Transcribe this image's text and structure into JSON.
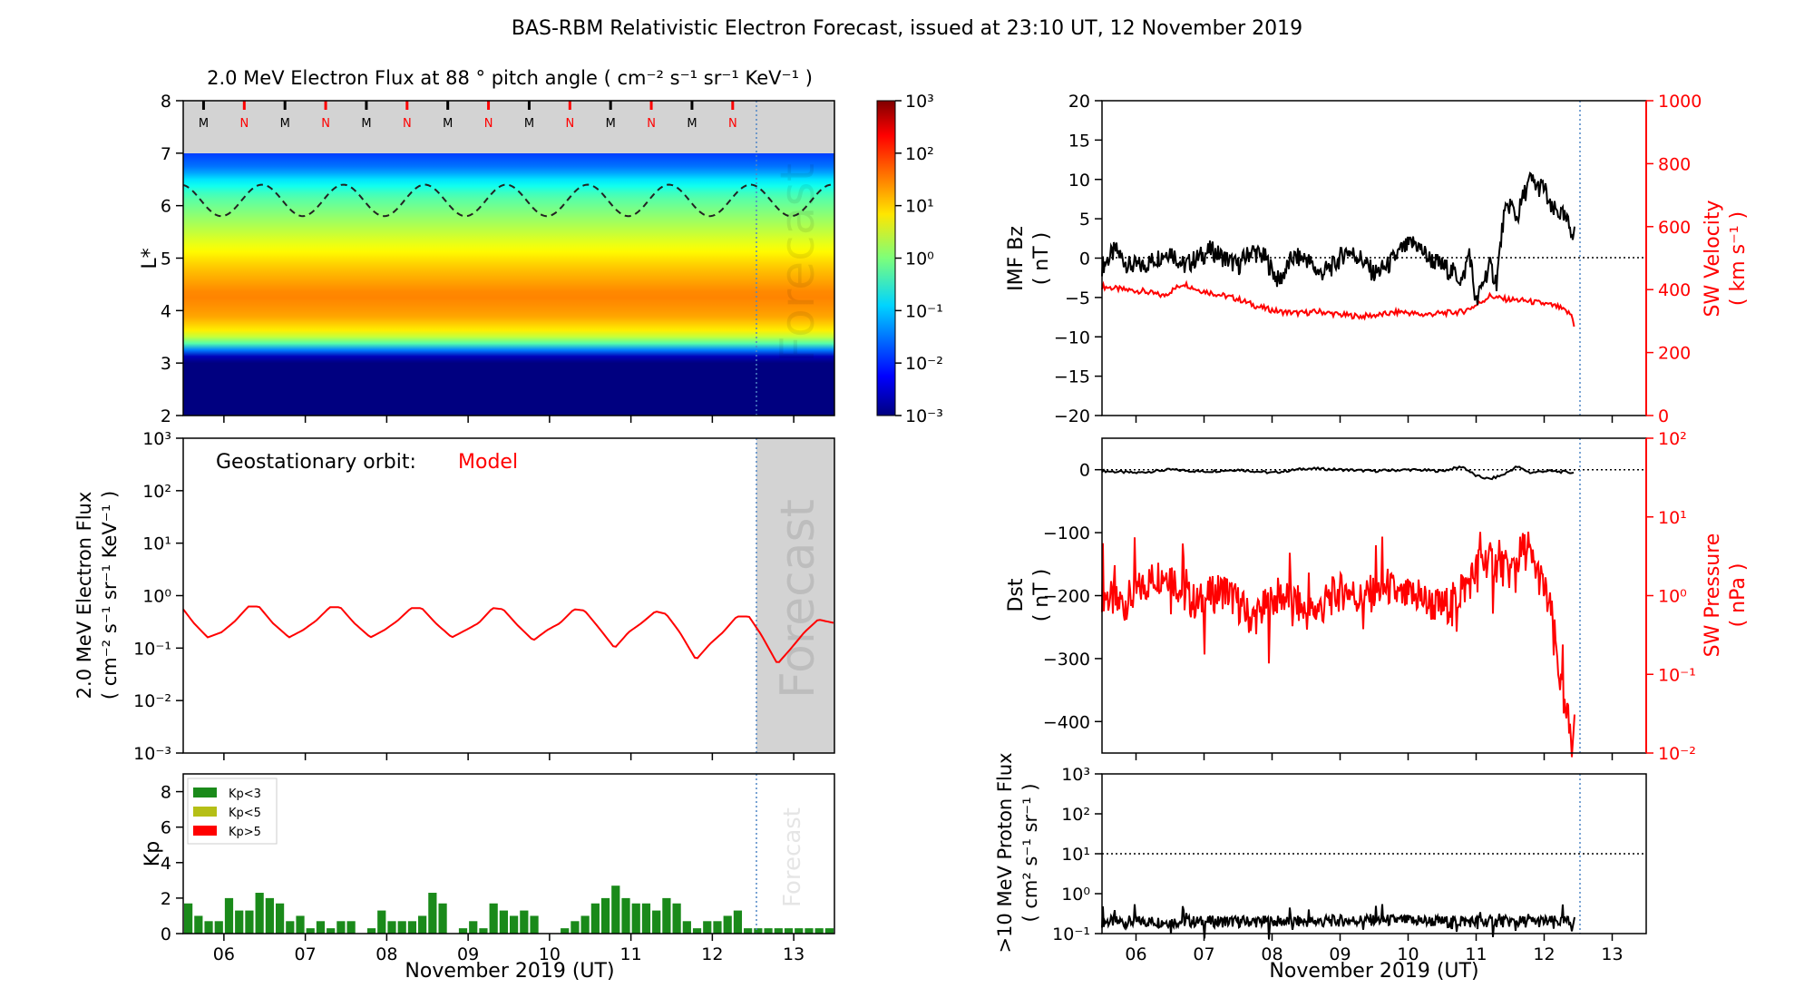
{
  "figure_title": "BAS-RBM Relativistic Electron Forecast, issued at 23:10 UT, 12 November 2019",
  "xaxis": {
    "label": "November 2019 (UT)",
    "ticks": [
      "06",
      "07",
      "08",
      "09",
      "10",
      "11",
      "12",
      "13"
    ]
  },
  "forecast_label": "Forecast",
  "chart_data": [
    {
      "id": "flux_heatmap",
      "type": "heatmap",
      "title": "2.0 MeV Electron Flux at 88 ° pitch angle ( cm⁻² s⁻¹ sr⁻¹ KeV⁻¹ )",
      "ylabel": "L*",
      "x_range_days": [
        5.5,
        13.5
      ],
      "ylim": [
        2,
        8
      ],
      "yticks": [
        "2",
        "3",
        "4",
        "5",
        "6",
        "7",
        "8"
      ],
      "colorbar": {
        "scale": "log",
        "range": [
          -3,
          3
        ],
        "tick_labels": [
          "10⁻³",
          "10⁻²",
          "10⁻¹",
          "10⁰",
          "10¹",
          "10²",
          "10³"
        ]
      },
      "profile_L": [
        2.0,
        3.0,
        3.1,
        3.25,
        3.4,
        3.6,
        3.9,
        4.3,
        4.8,
        5.3,
        5.8,
        6.2,
        6.5,
        6.7,
        7.0
      ],
      "profile_log_flux": [
        -3,
        -3,
        -2.9,
        -1.5,
        0.0,
        0.8,
        1.3,
        1.5,
        1.1,
        0.6,
        0.1,
        -0.3,
        -0.9,
        -1.5,
        -1.9
      ],
      "no_data_above_L": 7.0,
      "mlt_markers": [
        "M",
        "N",
        "M",
        "N",
        "M",
        "N",
        "M",
        "N",
        "M",
        "N",
        "M",
        "N",
        "M",
        "N"
      ],
      "mlt_marker_days": [
        5.75,
        6.25,
        6.75,
        7.25,
        7.75,
        8.25,
        8.75,
        9.25,
        9.75,
        10.25,
        10.75,
        11.25,
        11.75,
        12.25
      ],
      "geo_orbit_L_range": [
        5.8,
        6.4
      ],
      "forecast_start_day": 12.47
    },
    {
      "id": "geo_flux",
      "type": "line",
      "annotation_label": "Geostationary orbit:",
      "annotation_value": "Model",
      "ylabel_line1": "2.0 MeV Electron Flux",
      "ylabel_line2": "( cm⁻² s⁻¹ sr⁻¹ KeV⁻¹ )",
      "yscale": "log",
      "ylim_log": [
        -3,
        3
      ],
      "ytick_labels": [
        "10⁻³",
        "10⁻²",
        "10⁻¹",
        "10⁰",
        "10¹",
        "10²",
        "10³"
      ],
      "series": [
        {
          "x": [
            5.5,
            5.63,
            5.8,
            5.97,
            6.13,
            6.3,
            6.43,
            6.6,
            6.8,
            6.97,
            7.13,
            7.3,
            7.43,
            7.6,
            7.8,
            7.97,
            8.13,
            8.3,
            8.43,
            8.6,
            8.8,
            8.97,
            9.13,
            9.3,
            9.43,
            9.6,
            9.8,
            9.97,
            10.13,
            10.3,
            10.43,
            10.6,
            10.8,
            10.97,
            11.13,
            11.3,
            11.43,
            11.6,
            11.8,
            11.97,
            12.13,
            12.3,
            12.45,
            12.6,
            12.8,
            12.97,
            13.13,
            13.3,
            13.5
          ],
          "y": [
            0.55,
            0.3,
            0.16,
            0.2,
            0.32,
            0.62,
            0.62,
            0.3,
            0.16,
            0.22,
            0.33,
            0.6,
            0.6,
            0.3,
            0.16,
            0.22,
            0.33,
            0.58,
            0.58,
            0.3,
            0.16,
            0.22,
            0.3,
            0.58,
            0.55,
            0.28,
            0.14,
            0.22,
            0.3,
            0.55,
            0.52,
            0.25,
            0.1,
            0.2,
            0.3,
            0.5,
            0.45,
            0.2,
            0.06,
            0.12,
            0.2,
            0.4,
            0.4,
            0.18,
            0.05,
            0.1,
            0.2,
            0.35,
            0.3
          ]
        }
      ],
      "forecast_start_day": 12.47
    },
    {
      "id": "kp",
      "type": "bar",
      "ylabel": "Kp",
      "ylim": [
        0,
        9
      ],
      "yticks": [
        "0",
        "2",
        "4",
        "6",
        "8"
      ],
      "legend": [
        {
          "label": "Kp<3",
          "color": "#1a8a1a"
        },
        {
          "label": "Kp<5",
          "color": "#b5bf16"
        },
        {
          "label": "Kp>5",
          "color": "#ff0000"
        }
      ],
      "bar_start_day": 5.5,
      "bar_width_days": 0.125,
      "values": [
        1.7,
        1.0,
        0.7,
        0.7,
        2.0,
        1.3,
        1.3,
        2.3,
        2.0,
        1.7,
        0.7,
        1.0,
        0.3,
        0.7,
        0.3,
        0.7,
        0.7,
        0.0,
        0.3,
        1.3,
        0.7,
        0.7,
        0.7,
        1.0,
        2.3,
        1.7,
        0.0,
        0.3,
        0.7,
        0.3,
        1.7,
        1.3,
        1.0,
        1.3,
        1.0,
        0.0,
        0.0,
        0.3,
        0.7,
        1.0,
        1.7,
        2.0,
        2.7,
        2.0,
        1.7,
        1.7,
        1.3,
        2.0,
        1.7,
        0.7,
        0.3,
        0.7,
        0.7,
        1.0,
        1.3,
        0.3,
        0.3,
        0.3,
        0.3,
        0.3,
        0.3,
        0.3,
        0.3,
        0.3
      ],
      "forecast_start_day": 12.47
    },
    {
      "id": "imf_sw",
      "type": "line",
      "ylabel_left_line1": "IMF Bz",
      "ylabel_left_line2": "( nT )",
      "ylabel_right_line1": "SW Velocity",
      "ylabel_right_line2": "( km s⁻¹ )",
      "ylim_left": [
        -20,
        20
      ],
      "yticks_left": [
        "−20",
        "−15",
        "−10",
        "−5",
        "0",
        "5",
        "10",
        "15",
        "20"
      ],
      "ylim_right": [
        0,
        1000
      ],
      "yticks_right": [
        "0",
        "200",
        "400",
        "600",
        "800",
        "1000"
      ],
      "series": [
        {
          "name": "Bz",
          "x": [
            5.5,
            5.7,
            5.9,
            6.1,
            6.3,
            6.5,
            6.7,
            6.9,
            7.1,
            7.3,
            7.5,
            7.7,
            7.9,
            8.1,
            8.3,
            8.5,
            8.7,
            8.9,
            9.1,
            9.3,
            9.5,
            9.7,
            9.9,
            10.1,
            10.3,
            10.5,
            10.7,
            10.8,
            10.9,
            11.0,
            11.1,
            11.2,
            11.3,
            11.4,
            11.5,
            11.6,
            11.7,
            11.8,
            11.9,
            12.0,
            12.1,
            12.2,
            12.3,
            12.45
          ],
          "y": [
            -1,
            1,
            -1,
            -1,
            0,
            1,
            -1,
            0,
            1,
            0,
            -1,
            1,
            0,
            -3,
            0,
            0,
            -2,
            -1,
            1,
            0,
            -2,
            -1,
            1,
            2,
            0,
            -1,
            -2,
            -3,
            1,
            -6,
            -3,
            -1,
            -3,
            5,
            7,
            5,
            8,
            10,
            9,
            9,
            6,
            6,
            5,
            3
          ]
        },
        {
          "name": "Velocity",
          "x": [
            5.5,
            5.8,
            6.1,
            6.4,
            6.7,
            6.9,
            7.2,
            7.5,
            7.8,
            8.1,
            8.4,
            8.7,
            9.0,
            9.3,
            9.6,
            9.9,
            10.2,
            10.5,
            10.8,
            11.0,
            11.2,
            11.4,
            11.7,
            12.0,
            12.2,
            12.4,
            12.45
          ],
          "y": [
            410,
            400,
            395,
            380,
            420,
            400,
            385,
            370,
            345,
            330,
            325,
            330,
            320,
            315,
            320,
            330,
            320,
            325,
            330,
            350,
            380,
            370,
            365,
            355,
            345,
            320,
            280
          ]
        }
      ],
      "forecast_start_day": 12.47
    },
    {
      "id": "dst_pressure",
      "type": "line",
      "ylabel_left_line1": "Dst",
      "ylabel_left_line2": "( nT )",
      "ylabel_right_line1": "SW Pressure",
      "ylabel_right_line2": "( nPa )",
      "ylim_left": [
        -450,
        50
      ],
      "yticks_left": [
        "0",
        "−100",
        "−200",
        "−300",
        "−400"
      ],
      "ylim_right_log": [
        -2,
        2
      ],
      "ytick_right_labels": [
        "10⁻²",
        "10⁻¹",
        "10⁰",
        "10¹",
        "10²"
      ],
      "series": [
        {
          "name": "Dst",
          "x": [
            5.5,
            6.0,
            6.5,
            7.0,
            7.5,
            8.0,
            8.5,
            9.0,
            9.5,
            10.0,
            10.5,
            10.8,
            11.0,
            11.2,
            11.4,
            11.6,
            11.8,
            12.0,
            12.2,
            12.45
          ],
          "y": [
            -2,
            -5,
            0,
            -3,
            0,
            -5,
            2,
            0,
            -2,
            0,
            -2,
            5,
            -10,
            -15,
            -8,
            5,
            -5,
            -2,
            -3,
            -5
          ]
        },
        {
          "name": "Pressure",
          "x": [
            5.5,
            5.7,
            5.9,
            6.1,
            6.3,
            6.5,
            6.7,
            6.9,
            7.1,
            7.3,
            7.5,
            7.7,
            7.9,
            8.1,
            8.3,
            8.5,
            8.7,
            8.9,
            9.1,
            9.3,
            9.5,
            9.7,
            9.9,
            10.1,
            10.3,
            10.5,
            10.7,
            10.9,
            11.1,
            11.3,
            11.5,
            11.7,
            11.9,
            12.0,
            12.1,
            12.2,
            12.3,
            12.45
          ],
          "y": [
            1.1,
            0.8,
            0.9,
            1.3,
            1.8,
            2.0,
            1.0,
            0.8,
            1.0,
            1.2,
            0.8,
            0.5,
            0.7,
            1.0,
            0.9,
            0.6,
            0.7,
            1.0,
            1.2,
            0.9,
            1.1,
            1.3,
            0.9,
            1.0,
            0.8,
            0.7,
            0.9,
            1.5,
            3.0,
            2.5,
            2.0,
            4.0,
            2.0,
            1.2,
            0.6,
            0.15,
            0.03,
            0.02
          ]
        }
      ],
      "forecast_start_day": 12.47
    },
    {
      "id": "proton_flux",
      "type": "line",
      "ylabel_line1": ">10 MeV Proton Flux",
      "ylabel_line2": "( cm² s⁻¹ sr⁻¹ )",
      "yscale": "log",
      "ylim_log": [
        -1,
        3
      ],
      "ytick_labels": [
        "10⁻¹",
        "10⁰",
        "10¹",
        "10²",
        "10³"
      ],
      "threshold": 10,
      "series": [
        {
          "x": [
            5.5,
            6.5,
            7.5,
            8.5,
            9.5,
            10.5,
            11.5,
            12.45
          ],
          "y": [
            0.2,
            0.2,
            0.2,
            0.2,
            0.22,
            0.2,
            0.2,
            0.2
          ]
        }
      ],
      "forecast_start_day": 12.47
    }
  ]
}
